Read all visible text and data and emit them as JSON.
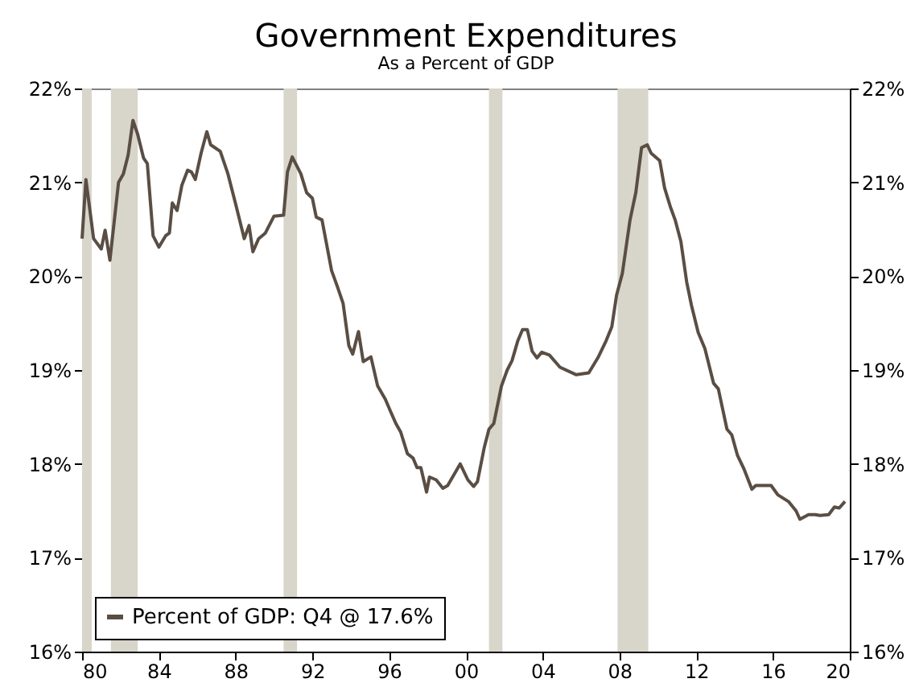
{
  "chart_data": {
    "type": "line",
    "title": "Government Expenditures",
    "subtitle": "As a Percent of GDP",
    "xlim": [
      1980,
      2020
    ],
    "xticks": [
      {
        "value": 1980,
        "label": "80"
      },
      {
        "value": 1984,
        "label": "84"
      },
      {
        "value": 1988,
        "label": "88"
      },
      {
        "value": 1992,
        "label": "92"
      },
      {
        "value": 1996,
        "label": "96"
      },
      {
        "value": 2000,
        "label": "00"
      },
      {
        "value": 2004,
        "label": "04"
      },
      {
        "value": 2008,
        "label": "08"
      },
      {
        "value": 2012,
        "label": "12"
      },
      {
        "value": 2016,
        "label": "16"
      },
      {
        "value": 2020,
        "label": "20"
      }
    ],
    "ylim": [
      16,
      22
    ],
    "yticks": [
      {
        "value": 16,
        "label": "16%"
      },
      {
        "value": 17,
        "label": "17%"
      },
      {
        "value": 18,
        "label": "18%"
      },
      {
        "value": 19,
        "label": "19%"
      },
      {
        "value": 20,
        "label": "20%"
      },
      {
        "value": 21,
        "label": "21%"
      },
      {
        "value": 22,
        "label": "22%"
      }
    ],
    "y2lim": [
      16,
      22
    ],
    "y2ticks": [
      {
        "value": 16,
        "label": "16%"
      },
      {
        "value": 17,
        "label": "17%"
      },
      {
        "value": 18,
        "label": "18%"
      },
      {
        "value": 19,
        "label": "19%"
      },
      {
        "value": 20,
        "label": "20%"
      },
      {
        "value": 21,
        "label": "21%"
      },
      {
        "value": 22,
        "label": "22%"
      }
    ],
    "grid": false,
    "legend": "bottom left",
    "marker": "none",
    "line_style": "solid",
    "bands": [
      {
        "axis": "x",
        "from": 1980.0,
        "to": 1980.5,
        "color": "#d8d5ca"
      },
      {
        "axis": "x",
        "from": 1981.5,
        "to": 1982.9,
        "color": "#d8d5ca"
      },
      {
        "axis": "x",
        "from": 1990.5,
        "to": 1991.2,
        "color": "#d8d5ca"
      },
      {
        "axis": "x",
        "from": 2001.2,
        "to": 2001.9,
        "color": "#d8d5ca"
      },
      {
        "axis": "x",
        "from": 2007.9,
        "to": 2009.5,
        "color": "#d8d5ca"
      }
    ],
    "series": [
      {
        "name": "Percent of GDP: Q4 @ 17.6%",
        "color": "#5a4e44",
        "x": [
          1980.0,
          1980.2,
          1980.6,
          1981.0,
          1981.2,
          1981.45,
          1981.9,
          1982.15,
          1982.4,
          1982.65,
          1982.9,
          1983.2,
          1983.4,
          1983.7,
          1984.0,
          1984.35,
          1984.55,
          1984.7,
          1984.95,
          1985.2,
          1985.5,
          1985.7,
          1985.9,
          1986.2,
          1986.5,
          1986.7,
          1987.2,
          1987.6,
          1988.0,
          1988.45,
          1988.7,
          1988.9,
          1989.2,
          1989.55,
          1990.0,
          1990.5,
          1990.7,
          1990.95,
          1991.4,
          1991.7,
          1992.0,
          1992.2,
          1992.5,
          1993.0,
          1993.3,
          1993.6,
          1993.9,
          1994.1,
          1994.4,
          1994.65,
          1995.05,
          1995.4,
          1995.8,
          1996.05,
          1996.35,
          1996.6,
          1996.95,
          1997.25,
          1997.45,
          1997.65,
          1997.95,
          1998.1,
          1998.45,
          1998.8,
          1999.05,
          1999.7,
          2000.1,
          2000.4,
          2000.6,
          2000.95,
          2001.2,
          2001.45,
          2001.85,
          2002.15,
          2002.4,
          2002.7,
          2002.95,
          2003.2,
          2003.45,
          2003.7,
          2003.95,
          2004.35,
          2004.9,
          2005.75,
          2006.4,
          2006.9,
          2007.3,
          2007.6,
          2007.85,
          2008.15,
          2008.55,
          2008.85,
          2009.15,
          2009.45,
          2009.65,
          2010.1,
          2010.35,
          2010.65,
          2010.9,
          2011.2,
          2011.5,
          2011.75,
          2012.1,
          2012.45,
          2012.9,
          2013.15,
          2013.6,
          2013.85,
          2014.15,
          2014.5,
          2014.9,
          2015.1,
          2015.9,
          2016.25,
          2016.8,
          2017.2,
          2017.4,
          2017.85,
          2018.2,
          2018.45,
          2018.9,
          2019.2,
          2019.45,
          2019.75
        ],
        "values": [
          20.4,
          21.03,
          20.4,
          20.29,
          20.49,
          20.17,
          21.0,
          21.09,
          21.29,
          21.66,
          21.51,
          21.26,
          21.2,
          20.43,
          20.31,
          20.43,
          20.46,
          20.78,
          20.7,
          20.97,
          21.13,
          21.11,
          21.03,
          21.31,
          21.54,
          21.4,
          21.33,
          21.09,
          20.77,
          20.4,
          20.54,
          20.26,
          20.4,
          20.46,
          20.64,
          20.65,
          21.11,
          21.27,
          21.09,
          20.89,
          20.83,
          20.63,
          20.6,
          20.06,
          19.89,
          19.71,
          19.26,
          19.17,
          19.41,
          19.09,
          19.14,
          18.83,
          18.69,
          18.57,
          18.43,
          18.34,
          18.11,
          18.06,
          17.96,
          17.96,
          17.7,
          17.86,
          17.83,
          17.74,
          17.77,
          18.0,
          17.83,
          17.76,
          17.81,
          18.17,
          18.37,
          18.43,
          18.83,
          19.0,
          19.1,
          19.31,
          19.43,
          19.43,
          19.2,
          19.13,
          19.19,
          19.16,
          19.03,
          18.95,
          18.97,
          19.14,
          19.31,
          19.46,
          19.8,
          20.03,
          20.6,
          20.89,
          21.37,
          21.4,
          21.31,
          21.23,
          20.94,
          20.74,
          20.6,
          20.37,
          19.94,
          19.69,
          19.4,
          19.23,
          18.86,
          18.8,
          18.37,
          18.31,
          18.09,
          17.94,
          17.73,
          17.77,
          17.77,
          17.67,
          17.6,
          17.5,
          17.41,
          17.46,
          17.46,
          17.45,
          17.46,
          17.54,
          17.53,
          17.6
        ]
      }
    ]
  }
}
